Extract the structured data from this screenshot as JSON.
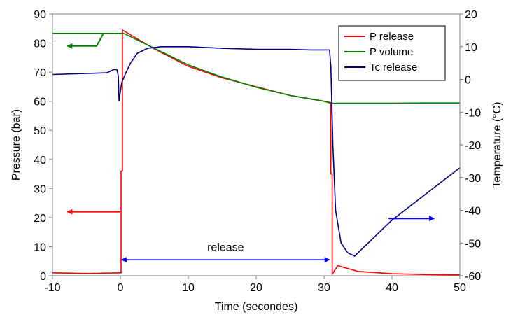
{
  "chart_data": {
    "type": "line",
    "xlabel": "Time (secondes)",
    "ylabel_left": "Pressure (bar)",
    "ylabel_right": "Temperature (°C)",
    "xlim": [
      -10,
      50
    ],
    "ylim_left": [
      0,
      90
    ],
    "ylim_right": [
      -60,
      20
    ],
    "xticks": [
      "-10",
      "0",
      "10",
      "20",
      "30",
      "40",
      "50"
    ],
    "yticks_left": [
      "0",
      "10",
      "20",
      "30",
      "40",
      "50",
      "60",
      "70",
      "80",
      "90"
    ],
    "yticks_right": [
      "-60",
      "-50",
      "-40",
      "-30",
      "-20",
      "-10",
      "0",
      "10",
      "20"
    ],
    "legend_position": "top-right",
    "series": [
      {
        "name": "P release",
        "axis": "left",
        "color": "#ff0000",
        "x": [
          -10,
          -5,
          0,
          0.1,
          0.1,
          0.3,
          0.3,
          5,
          10,
          15,
          20,
          25,
          30,
          31,
          31,
          31.2,
          31.2,
          32,
          35,
          40,
          45,
          50
        ],
        "y": [
          1,
          0.8,
          1,
          1,
          36,
          36,
          84.5,
          78,
          72,
          68,
          65,
          62,
          60,
          59.5,
          35,
          35,
          0.5,
          3.5,
          1.5,
          0.7,
          0.4,
          0.3
        ]
      },
      {
        "name": "P volume",
        "axis": "left",
        "color": "#008000",
        "x": [
          -10,
          -5,
          -2,
          0.5,
          5,
          10,
          15,
          20,
          25,
          30,
          31,
          35,
          40,
          45,
          50
        ],
        "y": [
          83.3,
          83.3,
          83.3,
          83.3,
          78.2,
          72.5,
          68.3,
          64.8,
          62.0,
          60.0,
          59.3,
          59.3,
          59.3,
          59.4,
          59.4
        ]
      },
      {
        "name": "Tc release",
        "axis": "right",
        "color": "#000080",
        "x": [
          -10,
          -2,
          -1,
          -0.5,
          -0.3,
          -0.2,
          0.2,
          0.8,
          1.5,
          2.5,
          4,
          6,
          10,
          15,
          20,
          25,
          28,
          30,
          30.8,
          31,
          31.3,
          31.7,
          32.5,
          33.5,
          34.5,
          35.5,
          37,
          40,
          45,
          50
        ],
        "y": [
          1.5,
          2,
          3,
          3,
          1,
          -6.5,
          -1,
          2,
          5,
          8,
          9.5,
          10,
          10,
          9.5,
          9.2,
          9.2,
          9.0,
          9.0,
          9.0,
          4,
          -20,
          -40,
          -50,
          -53,
          -54,
          -52,
          -49,
          -43,
          -35,
          -27
        ]
      }
    ],
    "annotations": {
      "release_label": "release",
      "release_range": [
        0,
        31
      ]
    }
  },
  "colors": {
    "p_release": "#ff0000",
    "p_volume": "#008000",
    "tc_release": "#000080",
    "red_arrow": "#ff0000",
    "green_arrow": "#008000",
    "blue_arrow": "#0000ff"
  }
}
